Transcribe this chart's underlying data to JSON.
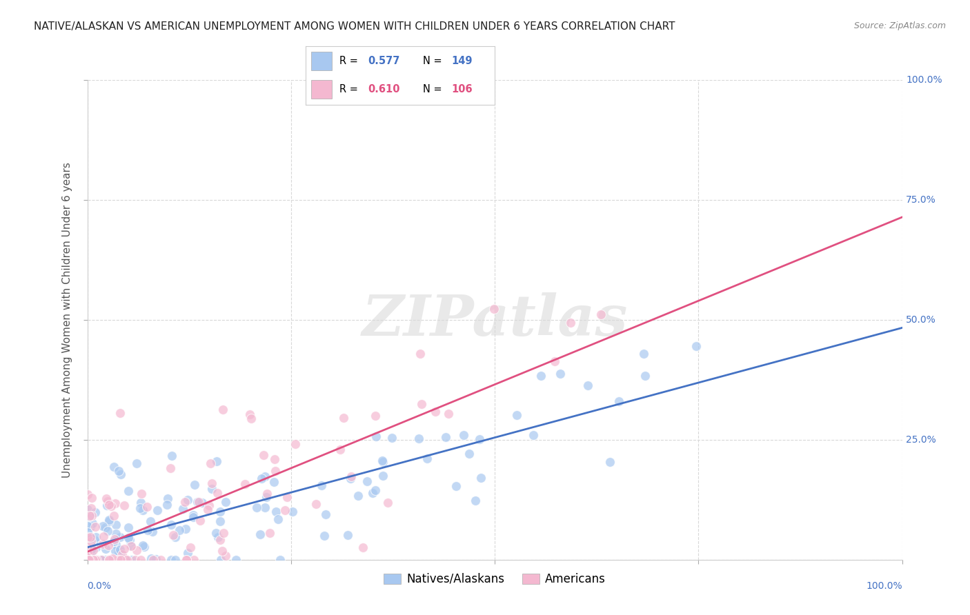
{
  "title": "NATIVE/ALASKAN VS AMERICAN UNEMPLOYMENT AMONG WOMEN WITH CHILDREN UNDER 6 YEARS CORRELATION CHART",
  "source": "Source: ZipAtlas.com",
  "ylabel": "Unemployment Among Women with Children Under 6 years",
  "xlim": [
    0.0,
    1.0
  ],
  "ylim": [
    0.0,
    1.0
  ],
  "xtick_positions": [
    0.0,
    0.25,
    0.5,
    0.75,
    1.0
  ],
  "ytick_positions": [
    0.0,
    0.25,
    0.5,
    0.75,
    1.0
  ],
  "right_ytick_labels": [
    "",
    "25.0%",
    "50.0%",
    "75.0%",
    "100.0%"
  ],
  "native_color": "#a8c8f0",
  "american_color": "#f4b8d0",
  "native_R": 0.577,
  "native_N": 149,
  "american_R": 0.61,
  "american_N": 106,
  "watermark_text": "ZIPatlas",
  "background_color": "#ffffff",
  "grid_color": "#d8d8d8",
  "native_line_color": "#4472c4",
  "american_line_color": "#e05080",
  "right_label_color": "#4472c4",
  "seed": 42
}
